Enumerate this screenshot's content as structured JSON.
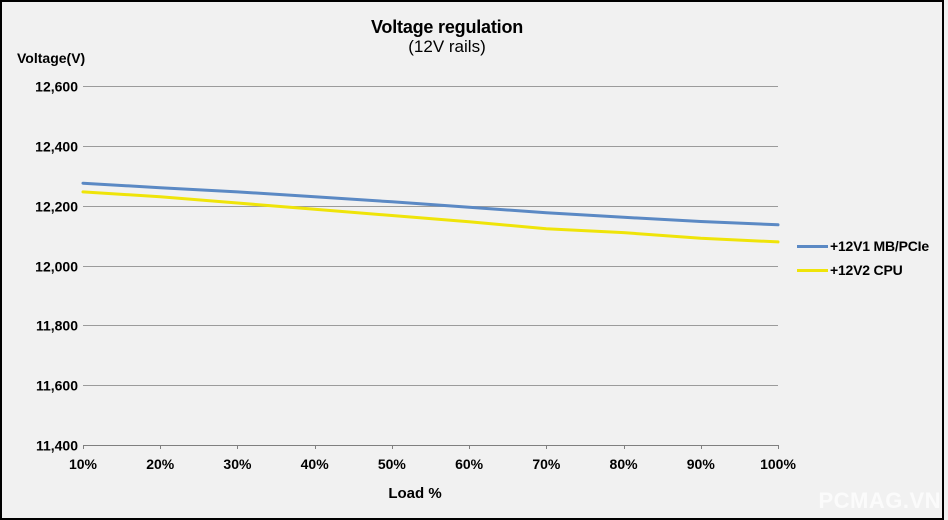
{
  "watermark": "PCMAG.VN",
  "chart_data": {
    "type": "line",
    "title": "Voltage regulation",
    "subtitle": "(12V rails)",
    "ylabel": "Voltage(V)",
    "xlabel": "Load %",
    "categories": [
      "10%",
      "20%",
      "30%",
      "40%",
      "50%",
      "60%",
      "70%",
      "80%",
      "90%",
      "100%"
    ],
    "series": [
      {
        "name": "+12V1 MB/PCIe",
        "color": "#5b89c4",
        "values": [
          12275,
          12260,
          12246,
          12230,
          12213,
          12195,
          12176,
          12161,
          12147,
          12136
        ]
      },
      {
        "name": "+12V2 CPU",
        "color": "#efe409",
        "values": [
          12246,
          12230,
          12209,
          12188,
          12167,
          12146,
          12123,
          12110,
          12091,
          12079
        ]
      }
    ],
    "ylim": [
      11400,
      12600
    ],
    "ytick_step": 200,
    "ytick_labels": [
      "12,600",
      "12,400",
      "12,200",
      "12,000",
      "11,800",
      "11,600",
      "11,400"
    ],
    "grid": true,
    "legend_position": "right",
    "gridline_color": "#9b9b9b",
    "axis_color": "#7f7f7f",
    "text_color": "#000000",
    "background_color": "#f1f1f1"
  }
}
